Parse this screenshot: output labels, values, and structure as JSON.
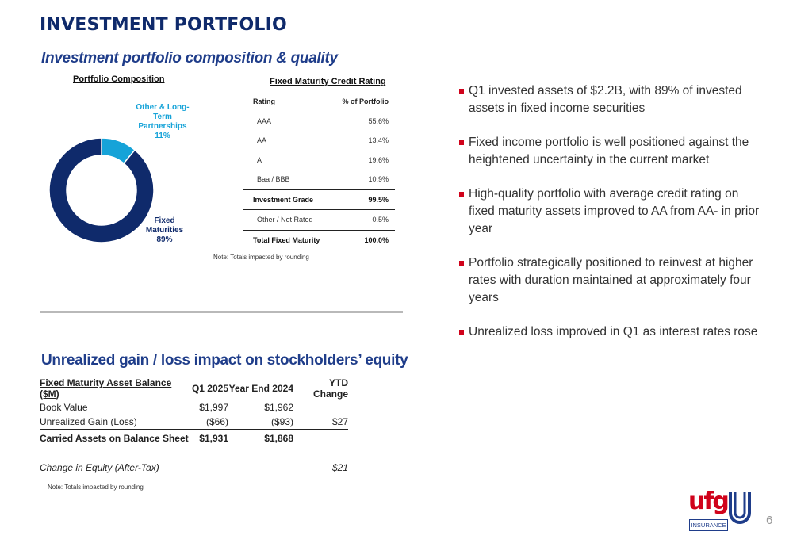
{
  "header": {
    "title": "INVESTMENT PORTFOLIO"
  },
  "section1": {
    "title": "Investment portfolio composition & quality"
  },
  "composition": {
    "title": "Portfolio Composition",
    "slices": [
      {
        "name_lines": [
          "Fixed",
          "Maturities",
          "89%"
        ],
        "value": 89,
        "color": "#0f2a6b"
      },
      {
        "name_lines": [
          "Other & Long-",
          "Term",
          "Partnerships",
          "11%"
        ],
        "value": 11,
        "color": "#16a3d8"
      }
    ]
  },
  "credit_rating": {
    "title": "Fixed Maturity Credit Rating",
    "headers": [
      "Rating",
      "% of Portfolio"
    ],
    "rows": [
      {
        "label": "AAA",
        "value": "55.6%"
      },
      {
        "label": "AA",
        "value": "13.4%"
      },
      {
        "label": "A",
        "value": "19.6%"
      },
      {
        "label": "Baa / BBB",
        "value": "10.9%"
      },
      {
        "label": "Investment Grade",
        "value": "99.5%"
      },
      {
        "label": "Other / Not Rated",
        "value": "0.5%"
      },
      {
        "label": "Total Fixed Maturity",
        "value": "100.0%"
      }
    ],
    "note": "Note: Totals impacted by rounding"
  },
  "bullets": [
    "Q1 invested assets of $2.2B, with 89% of invested assets in fixed income securities",
    "Fixed income portfolio is well positioned against the heightened uncertainty in the current market",
    "High-quality portfolio with average credit rating on fixed maturity assets improved to AA from AA- in prior year",
    "Portfolio strategically positioned to reinvest at higher rates with duration maintained at approximately four years",
    "Unrealized loss improved in Q1 as interest rates rose"
  ],
  "section2": {
    "title": "Unrealized gain / loss impact on stockholders’ equity"
  },
  "balance": {
    "headers": [
      "Fixed Maturity Asset Balance ($M)",
      "Q1 2025",
      "Year End 2024",
      "YTD Change"
    ],
    "rows": [
      [
        "Book Value",
        "$1,997",
        "$1,962",
        ""
      ],
      [
        "Unrealized Gain (Loss)",
        "($66)",
        "($93)",
        "$27"
      ],
      [
        "Carried Assets on Balance Sheet",
        "$1,931",
        "$1,868",
        ""
      ],
      [
        "Change in Equity (After-Tax)",
        "",
        "",
        "$21"
      ]
    ],
    "note": "Note: Totals impacted by rounding"
  },
  "logo": {
    "text": "ufg",
    "sub": "INSURANCE"
  },
  "page_number": "6"
}
